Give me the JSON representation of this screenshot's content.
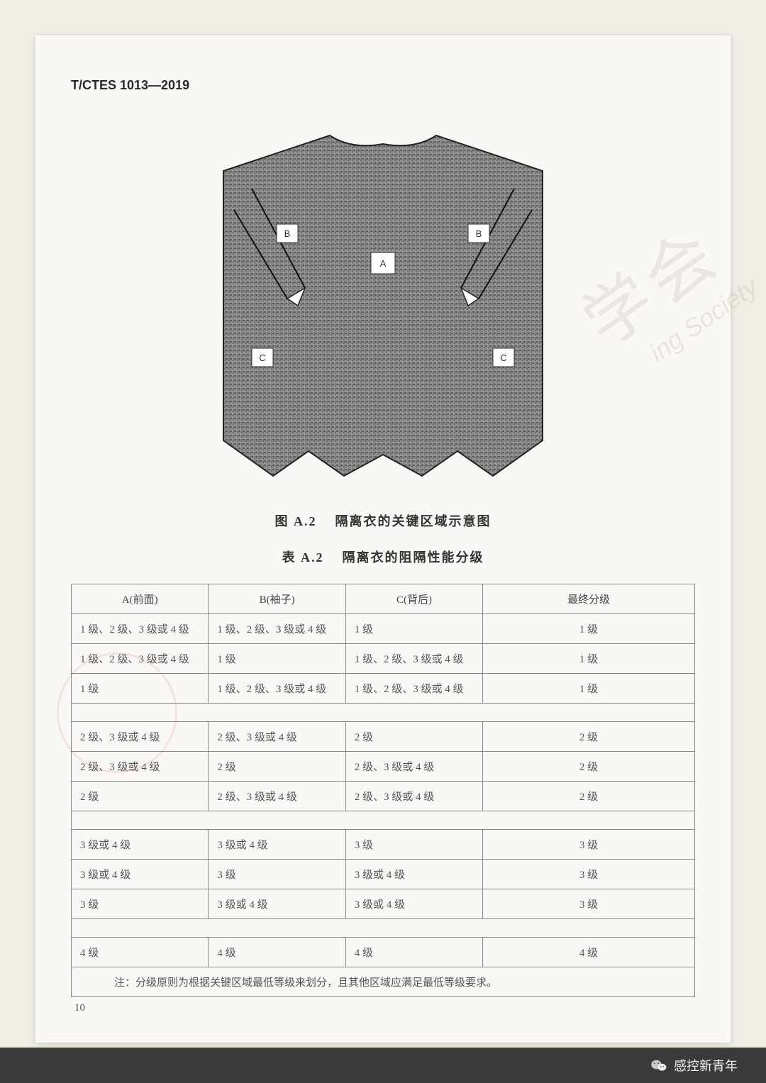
{
  "header": {
    "standard_code": "T/CTES 1013—2019"
  },
  "figure": {
    "caption_prefix": "图 A.2",
    "caption_text": "隔离衣的关键区域示意图",
    "labels": {
      "A": "A",
      "B": "B",
      "C": "C"
    },
    "styling": {
      "fill_pattern_color": "#767676",
      "outline_color": "#222222",
      "outline_width": 2,
      "label_box_fill": "#ffffff",
      "label_box_stroke": "#333333",
      "label_font_size": 13
    }
  },
  "table": {
    "caption_prefix": "表 A.2",
    "caption_text": "隔离衣的阻隔性能分级",
    "columns": [
      "A(前面)",
      "B(袖子)",
      "C(背后)",
      "最终分级"
    ],
    "groups": [
      [
        [
          "1 级、2 级、3 级或 4 级",
          "1 级、2 级、3 级或 4 级",
          "1 级",
          "1 级"
        ],
        [
          "1 级、2 级、3 级或 4 级",
          "1 级",
          "1 级、2 级、3 级或 4 级",
          "1 级"
        ],
        [
          "1 级",
          "1 级、2 级、3 级或 4 级",
          "1 级、2 级、3 级或 4 级",
          "1 级"
        ]
      ],
      [
        [
          "2 级、3 级或 4 级",
          "2 级、3 级或 4 级",
          "2 级",
          "2 级"
        ],
        [
          "2 级、3 级或 4 级",
          "2 级",
          "2 级、3 级或 4 级",
          "2 级"
        ],
        [
          "2 级",
          "2 级、3 级或 4 级",
          "2 级、3 级或 4 级",
          "2 级"
        ]
      ],
      [
        [
          "3 级或 4 级",
          "3 级或 4 级",
          "3 级",
          "3 级"
        ],
        [
          "3 级或 4 级",
          "3 级",
          "3 级或 4 级",
          "3 级"
        ],
        [
          "3 级",
          "3 级或 4 级",
          "3 级或 4 级",
          "3 级"
        ]
      ],
      [
        [
          "4 级",
          "4 级",
          "4 级",
          "4 级"
        ]
      ]
    ],
    "note": "注：分级原则为根据关键区域最低等级来划分，且其他区域应满足最低等级要求。",
    "styling": {
      "border_color": "#888888",
      "header_text_color": "#444444",
      "cell_text_color": "#555555",
      "font_size": 15,
      "col_widths_pct": [
        22,
        22,
        22,
        34
      ]
    }
  },
  "page_number": "10",
  "watermarks": {
    "cn": "学会",
    "en": "ing Society",
    "color": "rgba(180,170,160,0.22)"
  },
  "footer": {
    "source": "感控新青年"
  }
}
